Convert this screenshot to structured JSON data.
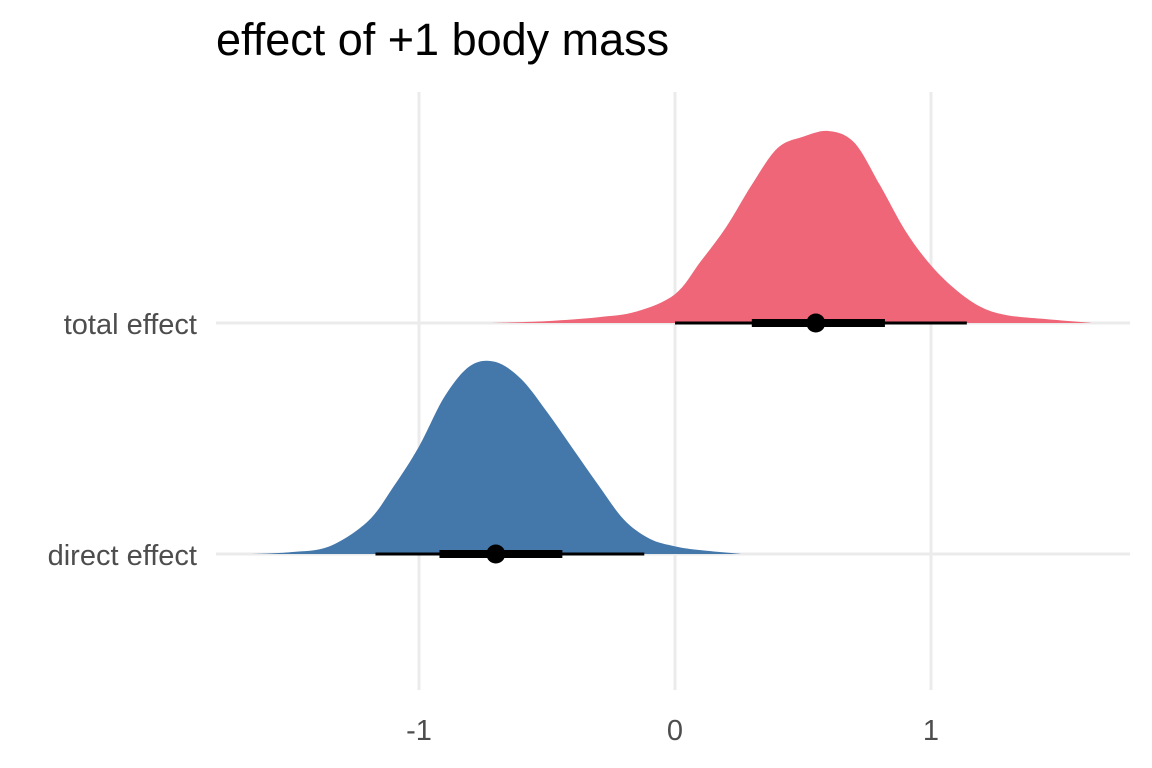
{
  "chart_data": {
    "type": "area",
    "subtype": "halfeye (posterior density with point estimate and intervals)",
    "title": "effect of +1 body mass",
    "xlabel": "",
    "ylabel": "",
    "xlim": [
      -1.8,
      1.8
    ],
    "x_ticks": [
      -1,
      0,
      1
    ],
    "x_tick_labels": [
      "-1",
      "0",
      "1"
    ],
    "grid": true,
    "legend": "none",
    "categories": [
      "total effect",
      "direct effect"
    ],
    "series": [
      {
        "name": "total effect",
        "color": "#EE6677",
        "density": {
          "x": [
            -0.72,
            -0.5,
            -0.3,
            -0.15,
            0.0,
            0.1,
            0.2,
            0.3,
            0.4,
            0.5,
            0.6,
            0.7,
            0.8,
            0.9,
            1.0,
            1.1,
            1.2,
            1.3,
            1.45,
            1.63
          ],
          "y": [
            0.0,
            0.01,
            0.03,
            0.06,
            0.15,
            0.32,
            0.5,
            0.72,
            0.91,
            0.97,
            1.0,
            0.94,
            0.72,
            0.48,
            0.3,
            0.17,
            0.08,
            0.04,
            0.02,
            0.0
          ]
        },
        "point_estimate": 0.55,
        "interval_66": [
          0.3,
          0.82
        ],
        "interval_95": [
          0.0,
          1.14
        ]
      },
      {
        "name": "direct effect",
        "color": "#4477AA",
        "density": {
          "x": [
            -1.65,
            -1.5,
            -1.35,
            -1.2,
            -1.1,
            -1.0,
            -0.9,
            -0.8,
            -0.7,
            -0.6,
            -0.5,
            -0.4,
            -0.3,
            -0.2,
            -0.1,
            0.0,
            0.1,
            0.26
          ],
          "y": [
            0.0,
            0.01,
            0.04,
            0.17,
            0.35,
            0.56,
            0.82,
            0.98,
            1.0,
            0.91,
            0.74,
            0.55,
            0.36,
            0.18,
            0.08,
            0.04,
            0.02,
            0.0
          ]
        },
        "point_estimate": -0.7,
        "interval_66": [
          -0.92,
          -0.44
        ],
        "interval_95": [
          -1.17,
          -0.12
        ]
      }
    ]
  }
}
